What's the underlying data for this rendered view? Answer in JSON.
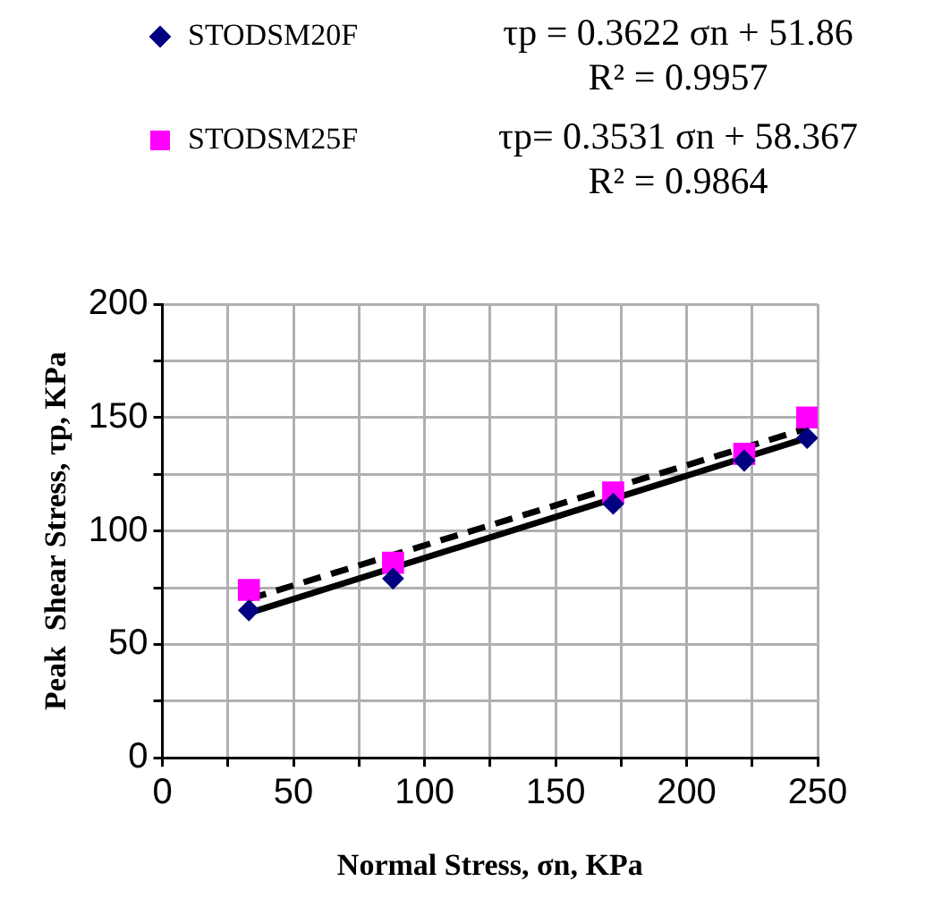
{
  "chart_data": {
    "type": "scatter",
    "xlabel": "Normal Stress, σn, KPa",
    "ylabel": "Peak  Shear Stress, τp, KPa",
    "series": [
      {
        "name": "STODSM20F",
        "color": "#000080",
        "marker": "diamond",
        "x": [
          33,
          88,
          172,
          222,
          246
        ],
        "values": [
          65,
          79,
          112,
          131,
          141
        ]
      },
      {
        "name": "STODSM25F",
        "color": "#ff00ff",
        "marker": "square",
        "x": [
          33,
          88,
          172,
          222,
          246
        ],
        "values": [
          74,
          86,
          117,
          134,
          150
        ]
      },
      {
        "type": "line",
        "color": "#000000",
        "line_style": "solid",
        "marker": "none",
        "x": [
          33,
          246
        ],
        "values": [
          63.8,
          141
        ]
      },
      {
        "type": "line",
        "color": "#000000",
        "line_style": "dashed",
        "marker": "none",
        "x": [
          33,
          246
        ],
        "values": [
          70,
          145.2
        ]
      }
    ],
    "annotations": [
      "τp = 0.3622 σn + 51.86",
      "R² = 0.9957",
      "τp= 0.3531 σn + 58.367",
      "R² = 0.9864"
    ],
    "xlim": [
      0,
      250
    ],
    "xticks": [
      0,
      {
        "value": 25,
        "label": null
      },
      50,
      {
        "value": 75,
        "label": null
      },
      100,
      {
        "value": 125,
        "label": null
      },
      150,
      {
        "value": 175,
        "label": null
      },
      200,
      {
        "value": 225,
        "label": null
      },
      250
    ],
    "ylim": [
      0,
      200
    ],
    "yticks": [
      0,
      {
        "value": 25,
        "label": null
      },
      50,
      {
        "value": 75,
        "label": null
      },
      100,
      {
        "value": 125,
        "label": null
      },
      150,
      {
        "value": 175,
        "label": null
      },
      200
    ],
    "grid": true,
    "legend": "top left"
  }
}
